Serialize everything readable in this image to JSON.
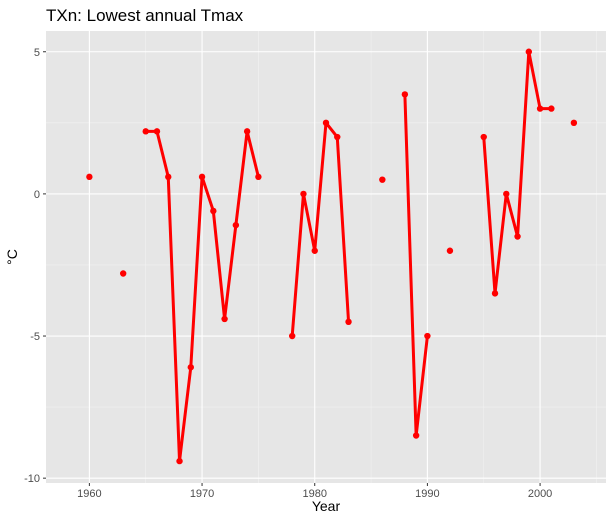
{
  "chart_data": {
    "type": "line",
    "title": "TXn: Lowest annual Tmax",
    "xlabel": "Year",
    "ylabel": "°C",
    "xlim": [
      1956.15,
      2005.85
    ],
    "ylim": [
      -10.17,
      5.73
    ],
    "x_ticks": [
      1960,
      1970,
      1980,
      1990,
      2000
    ],
    "y_ticks": [
      5,
      0,
      -5,
      -10
    ],
    "x_tick_labels": [
      "1960",
      "1970",
      "1980",
      "1990",
      "2000"
    ],
    "y_tick_labels": [
      "5",
      "0",
      "-5",
      "-10"
    ],
    "grid": true,
    "colors": {
      "series": "#ff0000",
      "panel": "#e6e6e6",
      "grid_major": "#ffffff",
      "grid_minor": "#f2f2f2"
    },
    "series": [
      {
        "x": [
          1960,
          1963,
          1965,
          1966,
          1967,
          1968,
          1969,
          1970,
          1971,
          1972,
          1973,
          1974,
          1975,
          1978,
          1979,
          1980,
          1981,
          1982,
          1983,
          1986,
          1988,
          1989,
          1990,
          1992,
          1995,
          1996,
          1997,
          1998,
          1999,
          2000,
          2001,
          2003
        ],
        "y": [
          0.6,
          -2.8,
          2.2,
          2.2,
          0.6,
          -9.4,
          -6.1,
          0.6,
          -0.6,
          -4.4,
          -1.1,
          2.2,
          0.6,
          -5.0,
          0.0,
          -2.0,
          2.5,
          2.0,
          -4.5,
          0.5,
          3.5,
          -8.5,
          -5.0,
          -2.0,
          2.0,
          -3.5,
          0.0,
          -1.5,
          5.0,
          3.0,
          3.0,
          2.5
        ]
      }
    ]
  }
}
